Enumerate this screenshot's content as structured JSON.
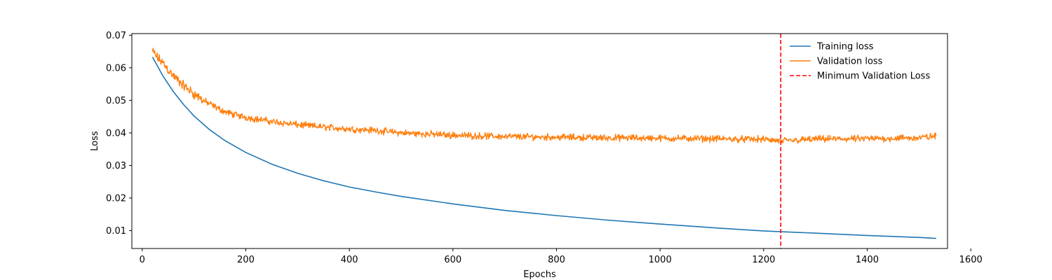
{
  "chart_data": {
    "type": "line",
    "title": "",
    "xlabel": "Epochs",
    "ylabel": "Loss",
    "xlim": [
      -20,
      1555
    ],
    "ylim": [
      0.0045,
      0.0705
    ],
    "xticks": [
      0,
      200,
      400,
      600,
      800,
      1000,
      1200,
      1400,
      1600
    ],
    "xtick_labels": [
      "0",
      "200",
      "400",
      "600",
      "800",
      "1000",
      "1200",
      "1400",
      "1600"
    ],
    "yticks": [
      0.01,
      0.02,
      0.03,
      0.04,
      0.05,
      0.06,
      0.07
    ],
    "ytick_labels": [
      "0.01",
      "0.02",
      "0.03",
      "0.04",
      "0.05",
      "0.06",
      "0.07"
    ],
    "grid": false,
    "legend_position": "top-right",
    "series": [
      {
        "name": "Training loss",
        "color": "#1f77b4",
        "x": [
          20,
          40,
          60,
          80,
          100,
          130,
          160,
          200,
          250,
          300,
          350,
          400,
          450,
          500,
          600,
          700,
          800,
          900,
          1000,
          1100,
          1200,
          1300,
          1400,
          1500,
          1533
        ],
        "y": [
          0.0633,
          0.0575,
          0.0527,
          0.0487,
          0.0452,
          0.041,
          0.0376,
          0.034,
          0.0304,
          0.0276,
          0.0253,
          0.0234,
          0.0219,
          0.0205,
          0.0182,
          0.0162,
          0.0146,
          0.0132,
          0.012,
          0.0109,
          0.0099,
          0.0092,
          0.0085,
          0.0079,
          0.0076
        ]
      },
      {
        "name": "Validation loss",
        "color": "#ff7f0e",
        "x": [
          20,
          30,
          40,
          50,
          60,
          80,
          100,
          120,
          140,
          160,
          180,
          200,
          250,
          300,
          350,
          400,
          450,
          500,
          600,
          700,
          800,
          900,
          1000,
          1100,
          1200,
          1233,
          1300,
          1400,
          1500,
          1533
        ],
        "y": [
          0.065,
          0.063,
          0.0615,
          0.0595,
          0.0575,
          0.0545,
          0.052,
          0.0498,
          0.048,
          0.0465,
          0.0455,
          0.0448,
          0.0435,
          0.0425,
          0.0418,
          0.0412,
          0.0408,
          0.04,
          0.0393,
          0.0389,
          0.0387,
          0.0385,
          0.0384,
          0.0382,
          0.038,
          0.0375,
          0.0381,
          0.0382,
          0.0385,
          0.039
        ]
      },
      {
        "name": "Minimum Validation Loss",
        "color": "#ff0000",
        "style": "dashed",
        "vline_x": 1233
      }
    ]
  }
}
